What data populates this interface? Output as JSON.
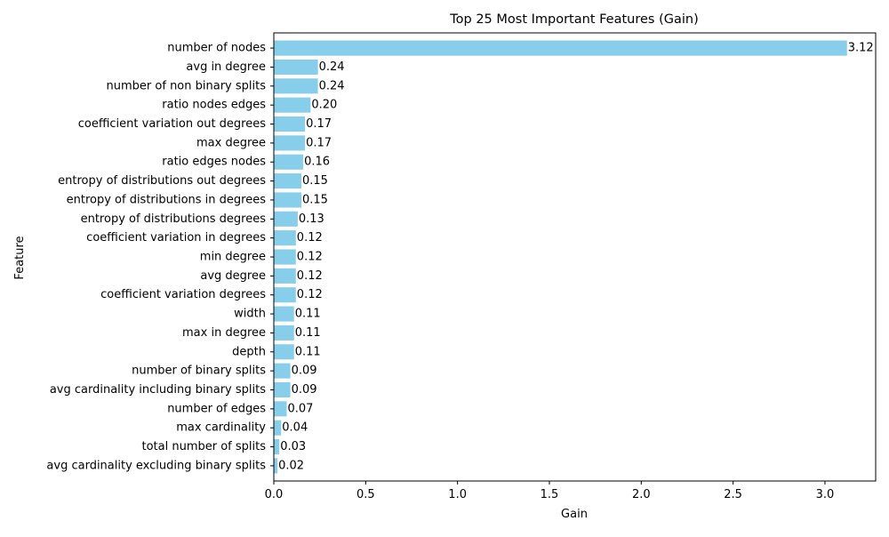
{
  "chart_data": {
    "type": "bar",
    "orientation": "horizontal",
    "title": "Top 25 Most Important Features (Gain)",
    "xlabel": "Gain",
    "ylabel": "Feature",
    "xlim": [
      0,
      3.276
    ],
    "xticks": [
      0.0,
      0.5,
      1.0,
      1.5,
      2.0,
      2.5,
      3.0
    ],
    "xtick_labels": [
      "0.0",
      "0.5",
      "1.0",
      "1.5",
      "2.0",
      "2.5",
      "3.0"
    ],
    "grid": false,
    "bar_color": "#87CEEB",
    "categories": [
      "number of nodes",
      "avg in degree",
      "number of non binary splits",
      "ratio nodes edges",
      "coefficient variation out degrees",
      "max degree",
      "ratio edges nodes",
      "entropy of distributions out degrees",
      "entropy of distributions in degrees",
      "entropy of distributions degrees",
      "coefficient variation in degrees",
      "min degree",
      "avg degree",
      "coefficient variation degrees",
      "width",
      "max in degree",
      "depth",
      "number of binary splits",
      "avg cardinality including binary splits",
      "number of edges",
      "max cardinality",
      "total number of splits",
      "avg cardinality excluding binary splits"
    ],
    "values": [
      3.12,
      0.24,
      0.24,
      0.2,
      0.17,
      0.17,
      0.16,
      0.15,
      0.15,
      0.13,
      0.12,
      0.12,
      0.12,
      0.12,
      0.11,
      0.11,
      0.11,
      0.09,
      0.09,
      0.07,
      0.04,
      0.03,
      0.02
    ],
    "value_labels": [
      "3.12",
      "0.24",
      "0.24",
      "0.20",
      "0.17",
      "0.17",
      "0.16",
      "0.15",
      "0.15",
      "0.13",
      "0.12",
      "0.12",
      "0.12",
      "0.12",
      "0.11",
      "0.11",
      "0.11",
      "0.09",
      "0.09",
      "0.07",
      "0.04",
      "0.03",
      "0.02"
    ]
  }
}
